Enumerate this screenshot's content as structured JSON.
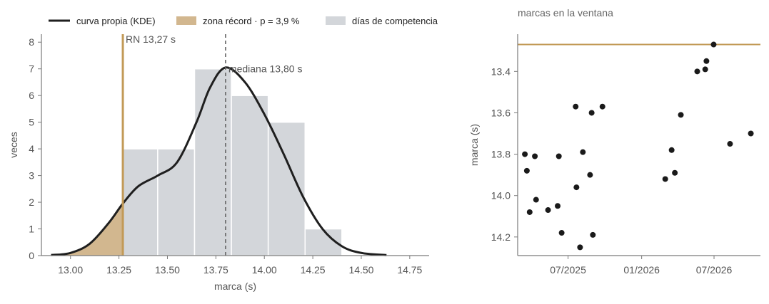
{
  "colors": {
    "kde": "#1f1f1f",
    "record": "#c29a57",
    "record_fill": "#d2b78f",
    "hist": "#d3d6da",
    "median_line": "#666666",
    "axis": "#7a7a7a",
    "dots": "#1a1a1a"
  },
  "legend": {
    "kde_label": "curva propia (KDE)",
    "zone_label": "zona récord · p = 3,9 %",
    "days_label": "días de competencia"
  },
  "chart_data": [
    {
      "type": "bar",
      "title": "",
      "xlabel": "marca (s)",
      "ylabel": "veces",
      "xlim": [
        12.85,
        14.85
      ],
      "ylim": [
        0,
        8.3
      ],
      "xticks": [
        "13.00",
        "13.25",
        "13.50",
        "13.75",
        "14.00",
        "14.25",
        "14.50",
        "14.75"
      ],
      "yticks": [
        "0",
        "1",
        "2",
        "3",
        "4",
        "5",
        "6",
        "7",
        "8"
      ],
      "bins": [
        {
          "from": 13.27,
          "to": 13.45,
          "count": 4
        },
        {
          "from": 13.45,
          "to": 13.64,
          "count": 4
        },
        {
          "from": 13.64,
          "to": 13.83,
          "count": 7
        },
        {
          "from": 13.83,
          "to": 14.02,
          "count": 6
        },
        {
          "from": 14.02,
          "to": 14.21,
          "count": 5
        },
        {
          "from": 14.21,
          "to": 14.4,
          "count": 1
        }
      ],
      "kde": {
        "x": [
          12.9,
          13.0,
          13.1,
          13.2,
          13.27,
          13.35,
          13.45,
          13.55,
          13.65,
          13.72,
          13.8,
          13.9,
          14.0,
          14.1,
          14.2,
          14.3,
          14.4,
          14.5,
          14.63
        ],
        "y": [
          0.02,
          0.1,
          0.45,
          1.25,
          1.95,
          2.6,
          3.0,
          3.5,
          5.0,
          6.3,
          7.05,
          6.5,
          5.3,
          3.8,
          2.2,
          1.0,
          0.35,
          0.1,
          0.02
        ]
      },
      "record": {
        "value": 13.27,
        "label": "RN 13,27 s"
      },
      "median": {
        "value": 13.8,
        "label": "mediana 13,80 s"
      }
    },
    {
      "type": "scatter",
      "title": "marcas en la ventana",
      "xlabel": "",
      "ylabel": "marca (s)",
      "xlim": [
        "2025-02-25",
        "2026-10-25"
      ],
      "ylim": [
        14.29,
        13.22
      ],
      "y_inverted": true,
      "xticks": [
        {
          "value": "2025-07-01",
          "label": "07/2025"
        },
        {
          "value": "2026-01-01",
          "label": "01/2026"
        },
        {
          "value": "2026-07-01",
          "label": "07/2026"
        }
      ],
      "yticks": [
        "13.4",
        "13.6",
        "13.8",
        "14.0",
        "14.2"
      ],
      "record": 13.27,
      "points": [
        {
          "x": "2025-03-15",
          "y": 13.8
        },
        {
          "x": "2025-03-20",
          "y": 13.88
        },
        {
          "x": "2025-03-27",
          "y": 14.08
        },
        {
          "x": "2025-04-09",
          "y": 13.81
        },
        {
          "x": "2025-04-12",
          "y": 14.02
        },
        {
          "x": "2025-05-12",
          "y": 14.07
        },
        {
          "x": "2025-06-05",
          "y": 14.05
        },
        {
          "x": "2025-06-08",
          "y": 13.81
        },
        {
          "x": "2025-06-15",
          "y": 14.18
        },
        {
          "x": "2025-07-20",
          "y": 13.57
        },
        {
          "x": "2025-07-22",
          "y": 13.96
        },
        {
          "x": "2025-07-31",
          "y": 14.25
        },
        {
          "x": "2025-08-07",
          "y": 13.79
        },
        {
          "x": "2025-08-25",
          "y": 13.9
        },
        {
          "x": "2025-08-29",
          "y": 13.6
        },
        {
          "x": "2025-09-01",
          "y": 14.19
        },
        {
          "x": "2025-09-25",
          "y": 13.57
        },
        {
          "x": "2026-03-01",
          "y": 13.92
        },
        {
          "x": "2026-03-17",
          "y": 13.78
        },
        {
          "x": "2026-03-25",
          "y": 13.89
        },
        {
          "x": "2026-04-09",
          "y": 13.61
        },
        {
          "x": "2026-05-20",
          "y": 13.4
        },
        {
          "x": "2026-06-09",
          "y": 13.39
        },
        {
          "x": "2026-06-12",
          "y": 13.35
        },
        {
          "x": "2026-06-30",
          "y": 13.27
        },
        {
          "x": "2026-08-10",
          "y": 13.75
        },
        {
          "x": "2026-10-01",
          "y": 13.7
        }
      ]
    }
  ]
}
